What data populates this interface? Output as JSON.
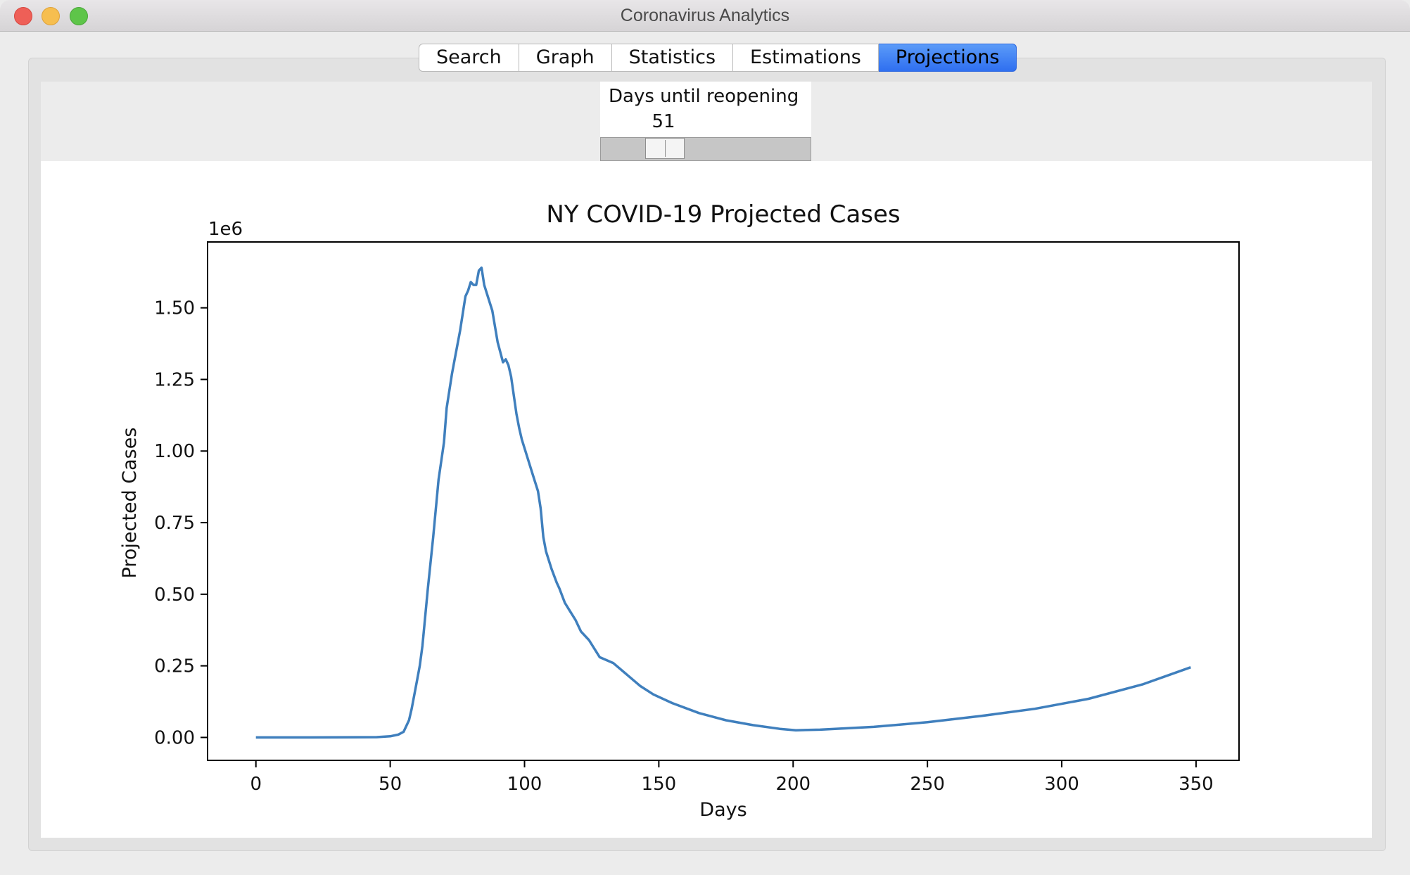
{
  "window": {
    "title": "Coronavirus Analytics"
  },
  "tabs": [
    {
      "label": "Search",
      "active": false
    },
    {
      "label": "Graph",
      "active": false
    },
    {
      "label": "Statistics",
      "active": false
    },
    {
      "label": "Estimations",
      "active": false
    },
    {
      "label": "Projections",
      "active": true
    }
  ],
  "slider": {
    "label": "Days until reopening",
    "value": "51",
    "value_number": 51,
    "min": 0,
    "max": 360
  },
  "chart_data": {
    "type": "line",
    "title": "NY COVID-19 Projected Cases",
    "xlabel": "Days",
    "ylabel": "Projected Cases",
    "offset_label": "1e6",
    "xlim": [
      -18,
      366
    ],
    "ylim": [
      -0.08,
      1.73
    ],
    "xticks": [
      0,
      50,
      100,
      150,
      200,
      250,
      300,
      350
    ],
    "xtick_labels": [
      "0",
      "50",
      "100",
      "150",
      "200",
      "250",
      "300",
      "350"
    ],
    "yticks": [
      0,
      0.25,
      0.5,
      0.75,
      1.0,
      1.25,
      1.5
    ],
    "ytick_labels": [
      "0.00",
      "0.25",
      "0.50",
      "0.75",
      "1.00",
      "1.25",
      "1.50"
    ],
    "grid": false,
    "line_color": "#3f7fbd",
    "series": [
      {
        "x": [
          0,
          20,
          45,
          50,
          53,
          55,
          57,
          58,
          60,
          61,
          62,
          64,
          66,
          68,
          70,
          71,
          72,
          73,
          74,
          76,
          78,
          79,
          80,
          81,
          82,
          83,
          84,
          85,
          86,
          88,
          90,
          92,
          93,
          94,
          95,
          97,
          98,
          99,
          101,
          103,
          105,
          106,
          107,
          108,
          110,
          112,
          113,
          115,
          117,
          119,
          121,
          124,
          128,
          133,
          138,
          143,
          148,
          155,
          165,
          175,
          185,
          195,
          201,
          210,
          230,
          250,
          270,
          290,
          310,
          330,
          348
        ],
        "y": [
          0.0,
          0.0,
          0.001,
          0.004,
          0.01,
          0.02,
          0.06,
          0.1,
          0.2,
          0.25,
          0.32,
          0.52,
          0.7,
          0.9,
          1.03,
          1.15,
          1.21,
          1.27,
          1.32,
          1.42,
          1.54,
          1.56,
          1.59,
          1.58,
          1.58,
          1.63,
          1.64,
          1.58,
          1.55,
          1.49,
          1.38,
          1.31,
          1.32,
          1.3,
          1.26,
          1.13,
          1.08,
          1.04,
          0.98,
          0.92,
          0.86,
          0.8,
          0.7,
          0.65,
          0.59,
          0.54,
          0.52,
          0.47,
          0.44,
          0.41,
          0.37,
          0.34,
          0.28,
          0.26,
          0.22,
          0.18,
          0.15,
          0.12,
          0.085,
          0.06,
          0.043,
          0.03,
          0.025,
          0.027,
          0.037,
          0.053,
          0.075,
          0.1,
          0.135,
          0.185,
          0.245
        ]
      }
    ]
  }
}
